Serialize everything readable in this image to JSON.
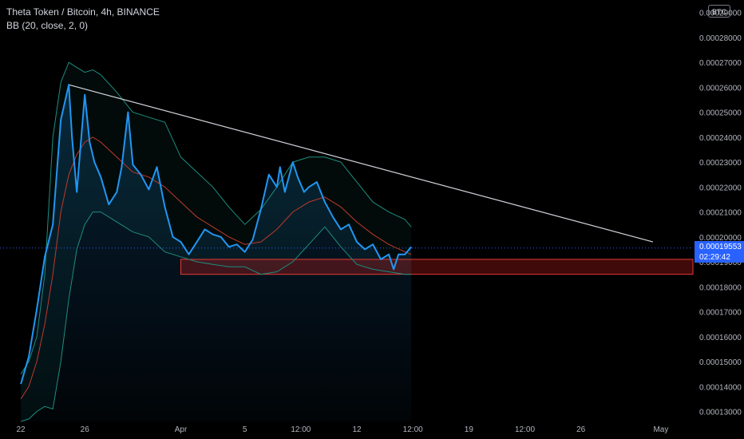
{
  "header": {
    "title": "Theta Token / Bitcoin, 4h, BINANCE",
    "indicator": "BB (20, close, 2, 0)",
    "currency_badge": "BTC"
  },
  "price_tag": {
    "price": "0.00019553",
    "countdown": "02:29:42"
  },
  "colors": {
    "price_line": "#2196f3",
    "bb_basis": "#c0392b",
    "bb_bands": "#1e8c7e",
    "trendline": "#d1d4dc",
    "support_zone": "#b71c1c",
    "accent": "#2962ff"
  },
  "chart_data": {
    "type": "line",
    "symbol": "Theta Token / Bitcoin",
    "interval": "4h",
    "exchange": "BINANCE",
    "y_axis": {
      "range": [
        0.000126,
        0.000295
      ],
      "tick_labels": [
        "0.00013000",
        "0.00014000",
        "0.00015000",
        "0.00016000",
        "0.00017000",
        "0.00018000",
        "0.00019000",
        "0.00020000",
        "0.00021000",
        "0.00022000",
        "0.00023000",
        "0.00024000",
        "0.00025000",
        "0.00026000",
        "0.00027000",
        "0.00028000",
        "0.00029000"
      ],
      "tick_values": [
        0.00013,
        0.00014,
        0.00015,
        0.00016,
        0.00017,
        0.00018,
        0.00019,
        0.0002,
        0.00021,
        0.00022,
        0.00023,
        0.00024,
        0.00025,
        0.00026,
        0.00027,
        0.00028,
        0.00029
      ]
    },
    "x_axis": {
      "tick_labels": [
        "22",
        "26",
        "Apr",
        "5",
        "12:00",
        "12",
        "12:00",
        "19",
        "12:00",
        "26",
        "May"
      ],
      "tick_days": [
        0,
        4,
        10,
        14,
        17.5,
        21,
        24.5,
        28,
        31.5,
        35,
        40
      ]
    },
    "x_range": [
      -1.3,
      42
    ],
    "x_unit": "days",
    "series": [
      {
        "name": "Close",
        "x": [
          0,
          0.5,
          1,
          1.5,
          2,
          2.5,
          3,
          3.2,
          3.5,
          4,
          4.3,
          4.6,
          5,
          5.5,
          6,
          6.3,
          6.7,
          7,
          7.5,
          8,
          8.5,
          9,
          9.5,
          10,
          10.5,
          11,
          11.5,
          12,
          12.5,
          13,
          13.5,
          14,
          14.5,
          15,
          15.5,
          16,
          16.2,
          16.5,
          17,
          17.3,
          17.7,
          18,
          18.5,
          19,
          19.5,
          20,
          20.5,
          21,
          21.5,
          22,
          22.5,
          23,
          23.3,
          23.6,
          24,
          24.4
        ],
        "y": [
          0.000141,
          0.000152,
          0.000171,
          0.000192,
          0.000205,
          0.000247,
          0.000261,
          0.00024,
          0.000218,
          0.000257,
          0.000238,
          0.00023,
          0.000224,
          0.000213,
          0.000218,
          0.000228,
          0.00025,
          0.000229,
          0.000225,
          0.000219,
          0.000228,
          0.000212,
          0.0002,
          0.000198,
          0.000193,
          0.000198,
          0.000203,
          0.000201,
          0.0002,
          0.000196,
          0.000197,
          0.000194,
          0.000199,
          0.000211,
          0.000225,
          0.00022,
          0.000228,
          0.000218,
          0.00023,
          0.000224,
          0.000218,
          0.00022,
          0.000222,
          0.000214,
          0.000208,
          0.000203,
          0.000205,
          0.000198,
          0.000195,
          0.000197,
          0.000191,
          0.000193,
          0.000187,
          0.000193,
          0.000193,
          0.000196
        ]
      },
      {
        "name": "BB Upper",
        "x": [
          0,
          0.5,
          1,
          1.5,
          2,
          2.5,
          3,
          3.5,
          4,
          4.5,
          5,
          6,
          7,
          8,
          9,
          10,
          11,
          12,
          13,
          14,
          15,
          16,
          17,
          18,
          19,
          20,
          21,
          22,
          23,
          24,
          24.4
        ],
        "y": [
          0.000145,
          0.00015,
          0.00016,
          0.000185,
          0.00024,
          0.000262,
          0.00027,
          0.000268,
          0.000266,
          0.000267,
          0.000265,
          0.000258,
          0.00025,
          0.000248,
          0.000246,
          0.000232,
          0.000226,
          0.00022,
          0.000212,
          0.000205,
          0.000211,
          0.00022,
          0.00023,
          0.000232,
          0.000232,
          0.00023,
          0.000222,
          0.000214,
          0.00021,
          0.000207,
          0.000204
        ]
      },
      {
        "name": "BB Basis",
        "x": [
          0,
          0.5,
          1,
          1.5,
          2,
          2.5,
          3,
          3.5,
          4,
          4.5,
          5,
          6,
          7,
          8,
          9,
          10,
          11,
          12,
          13,
          14,
          15,
          16,
          17,
          18,
          19,
          20,
          21,
          22,
          23,
          24,
          24.4
        ],
        "y": [
          0.000135,
          0.00014,
          0.00015,
          0.000165,
          0.000185,
          0.00021,
          0.000225,
          0.000233,
          0.000238,
          0.00024,
          0.000238,
          0.000232,
          0.000226,
          0.000224,
          0.00022,
          0.000214,
          0.000208,
          0.000204,
          0.0002,
          0.000197,
          0.000198,
          0.000203,
          0.00021,
          0.000214,
          0.000216,
          0.000212,
          0.000206,
          0.000201,
          0.000197,
          0.000194,
          0.000193
        ]
      },
      {
        "name": "BB Lower",
        "x": [
          0,
          0.5,
          1,
          1.5,
          2,
          2.5,
          3,
          3.5,
          4,
          4.5,
          5,
          6,
          7,
          8,
          9,
          10,
          11,
          12,
          13,
          14,
          15,
          16,
          17,
          18,
          19,
          20,
          21,
          22,
          23,
          24,
          24.4
        ],
        "y": [
          0.000126,
          0.000127,
          0.00013,
          0.000132,
          0.000131,
          0.00015,
          0.000175,
          0.000195,
          0.000205,
          0.00021,
          0.00021,
          0.000206,
          0.000202,
          0.0002,
          0.000194,
          0.000192,
          0.00019,
          0.000189,
          0.000188,
          0.000188,
          0.000185,
          0.000186,
          0.00019,
          0.000197,
          0.000204,
          0.000196,
          0.000189,
          0.000187,
          0.000186,
          0.000185,
          0.000185
        ]
      }
    ],
    "trendline": {
      "x": [
        3,
        39.5
      ],
      "y": [
        0.000261,
        0.000198
      ]
    },
    "support_zone": {
      "x": [
        10,
        42
      ],
      "y": [
        0.000185,
        0.000191
      ]
    },
    "last_price": 0.00019553
  }
}
